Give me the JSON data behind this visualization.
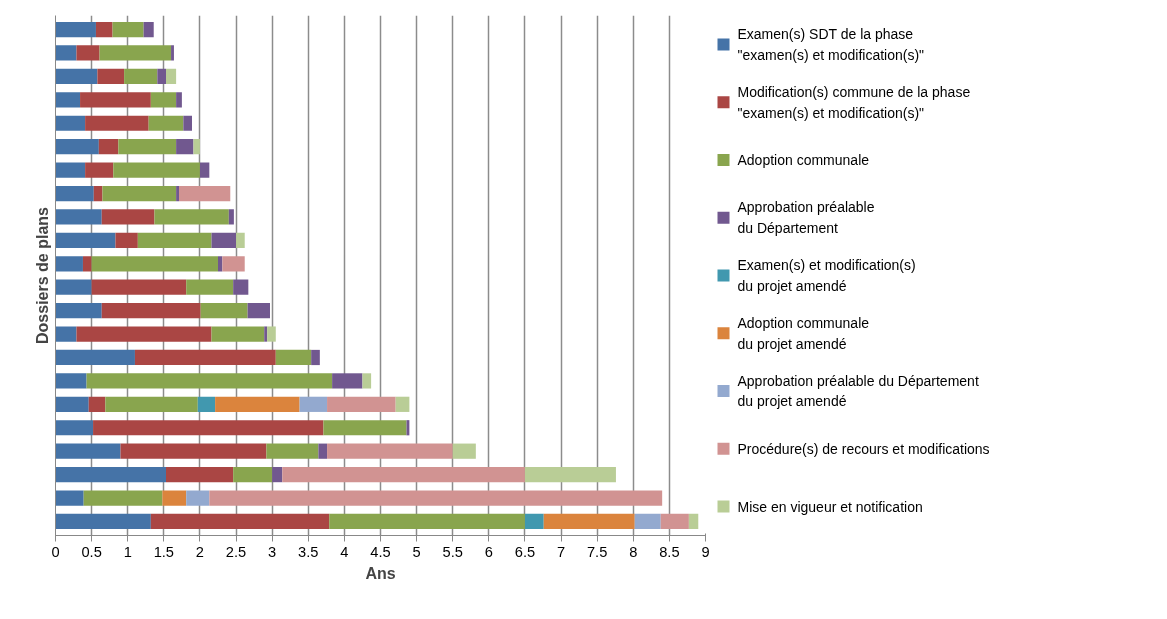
{
  "chart_data": {
    "type": "bar",
    "orientation": "horizontal",
    "stacked": true,
    "xlabel": "Ans",
    "ylabel": "Dossiers de plans",
    "categories": [
      null,
      null,
      null,
      null,
      null,
      null,
      null,
      null,
      null,
      null,
      null,
      null,
      null,
      null,
      null,
      null,
      null,
      null,
      null,
      null,
      null,
      null
    ],
    "xlim": [
      0,
      9
    ],
    "xticks": [
      0,
      0.5,
      1,
      1.5,
      2,
      2.5,
      3,
      3.5,
      4,
      4.5,
      5,
      5.5,
      6,
      6.5,
      7,
      7.5,
      8,
      8.5,
      9
    ],
    "grid": "x",
    "legend": "right",
    "tick_labels": "x",
    "series": [
      {
        "name": "Examen(s) SDT de la phase\n\"examen(s) et modification(s)\"",
        "color": "#4573a7",
        "values": [
          0.56,
          0.29,
          0.58,
          0.34,
          0.41,
          0.6,
          0.41,
          0.53,
          0.64,
          0.83,
          0.38,
          0.5,
          0.64,
          0.29,
          1.1,
          0.43,
          0.46,
          0.52,
          0.9,
          1.53,
          0.39,
          1.32
        ]
      },
      {
        "name": "Modification(s) commune de la phase\n\"examen(s) et modification(s)\"",
        "color": "#aa4644",
        "values": [
          0.23,
          0.32,
          0.37,
          0.98,
          0.88,
          0.27,
          0.39,
          0.12,
          0.73,
          0.31,
          0.12,
          1.31,
          1.37,
          1.87,
          1.95,
          null,
          0.23,
          3.19,
          2.02,
          0.93,
          null,
          2.47
        ]
      },
      {
        "name": "Adoption communale",
        "color": "#89a54e",
        "values": [
          0.43,
          0.99,
          0.46,
          0.35,
          0.48,
          0.8,
          1.2,
          1.02,
          1.03,
          1.02,
          1.75,
          0.65,
          0.65,
          0.73,
          0.49,
          3.4,
          1.28,
          1.15,
          0.72,
          0.54,
          1.09,
          2.71
        ]
      },
      {
        "name": "Approbation préalable\ndu Département",
        "color": "#71588f",
        "values": [
          0.14,
          0.04,
          0.12,
          0.08,
          0.12,
          0.24,
          0.13,
          0.04,
          0.07,
          0.34,
          0.06,
          0.21,
          0.31,
          0.04,
          0.12,
          0.42,
          null,
          0.04,
          0.12,
          0.14,
          null,
          null
        ]
      },
      {
        "name": "Examen(s) et modification(s)\ndu projet amendé",
        "color": "#4198af",
        "values": [
          null,
          null,
          null,
          null,
          null,
          null,
          null,
          null,
          null,
          null,
          null,
          null,
          null,
          null,
          null,
          null,
          0.24,
          null,
          null,
          null,
          null,
          0.26
        ]
      },
      {
        "name": "Adoption communale\ndu projet amendé",
        "color": "#db843d",
        "values": [
          null,
          null,
          null,
          null,
          null,
          null,
          null,
          null,
          null,
          null,
          null,
          null,
          null,
          null,
          null,
          null,
          1.17,
          null,
          null,
          null,
          0.33,
          1.26
        ]
      },
      {
        "name": "Approbation préalable du Département\ndu projet amendé",
        "color": "#93a9cf",
        "values": [
          null,
          null,
          null,
          null,
          null,
          null,
          null,
          null,
          null,
          null,
          null,
          null,
          null,
          null,
          null,
          null,
          0.38,
          null,
          null,
          null,
          0.32,
          0.36
        ]
      },
      {
        "name": "Procédure(s) de recours et modifications",
        "color": "#d19392",
        "values": [
          null,
          null,
          null,
          null,
          null,
          null,
          null,
          0.71,
          null,
          null,
          0.31,
          null,
          null,
          null,
          null,
          null,
          0.95,
          null,
          1.74,
          3.36,
          6.27,
          0.39
        ]
      },
      {
        "name": "Mise en vigueur et notification",
        "color": "#b9cd96",
        "values": [
          null,
          null,
          0.14,
          null,
          null,
          0.09,
          null,
          null,
          null,
          0.12,
          null,
          null,
          null,
          0.12,
          null,
          0.12,
          0.19,
          null,
          0.32,
          1.26,
          null,
          0.13
        ]
      }
    ]
  }
}
